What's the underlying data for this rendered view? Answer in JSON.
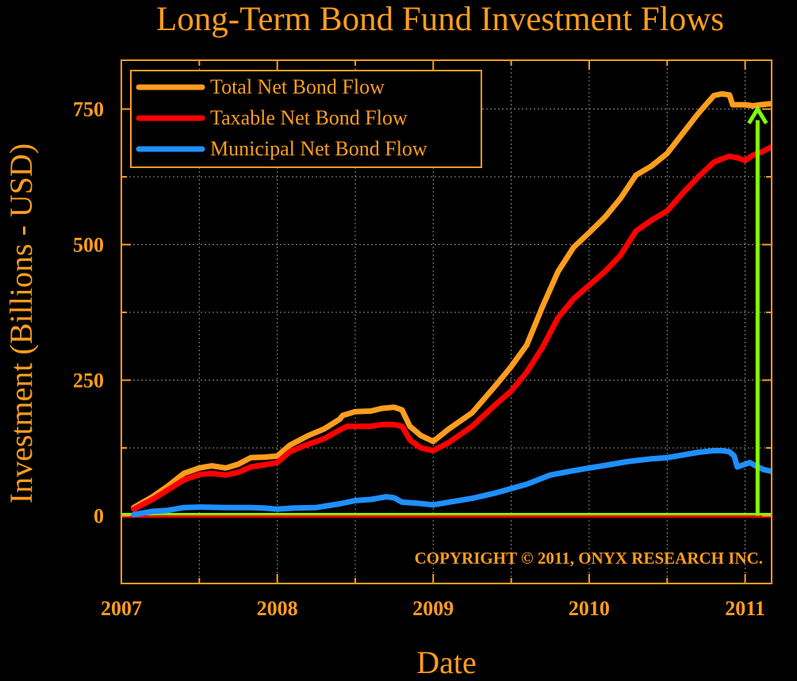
{
  "colors": {
    "background": "#000000",
    "text": "#FF9D1E",
    "total": "#FF9D1E",
    "taxable": "#FF0000",
    "municipal": "#1E90FF",
    "arrow": "#7FFF00",
    "zero_line": "#7FFF00",
    "grid": "#8a8a8a"
  },
  "chart_data": {
    "type": "line",
    "title": "Long-Term Bond Fund Investment Flows",
    "xlabel": "Date",
    "ylabel": "Investment (Billions - USD)",
    "xlim": [
      2007.0,
      2011.17
    ],
    "ylim": [
      -125,
      840
    ],
    "x_ticks": [
      {
        "value": 2007,
        "label": "2007"
      },
      {
        "value": 2008,
        "label": "2008"
      },
      {
        "value": 2009,
        "label": "2009"
      },
      {
        "value": 2010,
        "label": "2010"
      },
      {
        "value": 2011,
        "label": "2011"
      }
    ],
    "y_ticks": [
      {
        "value": 0,
        "label": "0"
      },
      {
        "value": 250,
        "label": "250"
      },
      {
        "value": 500,
        "label": "500"
      },
      {
        "value": 750,
        "label": "750"
      }
    ],
    "grid": true,
    "legend_position": "top-left",
    "copyright": "COPYRIGHT © 2011, ONYX RESEARCH INC.",
    "series": [
      {
        "name": "Total Net Bond Flow",
        "color_key": "total",
        "points": [
          [
            2007.08,
            15
          ],
          [
            2007.2,
            35
          ],
          [
            2007.3,
            55
          ],
          [
            2007.4,
            78
          ],
          [
            2007.5,
            88
          ],
          [
            2007.58,
            92
          ],
          [
            2007.67,
            88
          ],
          [
            2007.75,
            95
          ],
          [
            2007.83,
            107
          ],
          [
            2007.92,
            108
          ],
          [
            2008.0,
            110
          ],
          [
            2008.08,
            130
          ],
          [
            2008.2,
            148
          ],
          [
            2008.3,
            160
          ],
          [
            2008.4,
            178
          ],
          [
            2008.42,
            185
          ],
          [
            2008.5,
            192
          ],
          [
            2008.6,
            193
          ],
          [
            2008.67,
            198
          ],
          [
            2008.75,
            200
          ],
          [
            2008.8,
            195
          ],
          [
            2008.85,
            165
          ],
          [
            2008.92,
            148
          ],
          [
            2009.0,
            137
          ],
          [
            2009.1,
            160
          ],
          [
            2009.25,
            190
          ],
          [
            2009.4,
            240
          ],
          [
            2009.5,
            275
          ],
          [
            2009.6,
            315
          ],
          [
            2009.7,
            385
          ],
          [
            2009.8,
            450
          ],
          [
            2009.9,
            495
          ],
          [
            2010.0,
            522
          ],
          [
            2010.1,
            550
          ],
          [
            2010.2,
            585
          ],
          [
            2010.3,
            628
          ],
          [
            2010.4,
            645
          ],
          [
            2010.5,
            668
          ],
          [
            2010.6,
            705
          ],
          [
            2010.7,
            742
          ],
          [
            2010.8,
            775
          ],
          [
            2010.85,
            778
          ],
          [
            2010.9,
            776
          ],
          [
            2010.92,
            758
          ],
          [
            2011.0,
            758
          ],
          [
            2011.05,
            756
          ],
          [
            2011.1,
            758
          ],
          [
            2011.17,
            760
          ]
        ]
      },
      {
        "name": "Taxable Net Bond Flow",
        "color_key": "taxable",
        "points": [
          [
            2007.08,
            12
          ],
          [
            2007.2,
            30
          ],
          [
            2007.3,
            48
          ],
          [
            2007.4,
            66
          ],
          [
            2007.5,
            76
          ],
          [
            2007.58,
            78
          ],
          [
            2007.67,
            75
          ],
          [
            2007.75,
            80
          ],
          [
            2007.83,
            90
          ],
          [
            2007.92,
            94
          ],
          [
            2008.0,
            98
          ],
          [
            2008.08,
            118
          ],
          [
            2008.2,
            132
          ],
          [
            2008.3,
            142
          ],
          [
            2008.4,
            158
          ],
          [
            2008.45,
            165
          ],
          [
            2008.5,
            165
          ],
          [
            2008.6,
            165
          ],
          [
            2008.67,
            168
          ],
          [
            2008.75,
            168
          ],
          [
            2008.8,
            165
          ],
          [
            2008.85,
            140
          ],
          [
            2008.92,
            125
          ],
          [
            2009.0,
            120
          ],
          [
            2009.1,
            135
          ],
          [
            2009.25,
            165
          ],
          [
            2009.4,
            205
          ],
          [
            2009.5,
            230
          ],
          [
            2009.6,
            265
          ],
          [
            2009.7,
            310
          ],
          [
            2009.8,
            365
          ],
          [
            2009.9,
            400
          ],
          [
            2010.0,
            425
          ],
          [
            2010.1,
            450
          ],
          [
            2010.2,
            480
          ],
          [
            2010.3,
            525
          ],
          [
            2010.4,
            545
          ],
          [
            2010.5,
            562
          ],
          [
            2010.6,
            595
          ],
          [
            2010.7,
            625
          ],
          [
            2010.8,
            652
          ],
          [
            2010.85,
            658
          ],
          [
            2010.9,
            663
          ],
          [
            2010.95,
            660
          ],
          [
            2011.0,
            655
          ],
          [
            2011.05,
            665
          ],
          [
            2011.1,
            670
          ],
          [
            2011.17,
            680
          ]
        ]
      },
      {
        "name": "Municipal Net Bond Flow",
        "color_key": "municipal",
        "points": [
          [
            2007.08,
            2
          ],
          [
            2007.2,
            8
          ],
          [
            2007.3,
            10
          ],
          [
            2007.4,
            15
          ],
          [
            2007.5,
            16
          ],
          [
            2007.67,
            15
          ],
          [
            2007.83,
            15
          ],
          [
            2007.92,
            14
          ],
          [
            2008.0,
            12
          ],
          [
            2008.1,
            14
          ],
          [
            2008.25,
            15
          ],
          [
            2008.4,
            22
          ],
          [
            2008.5,
            28
          ],
          [
            2008.6,
            30
          ],
          [
            2008.7,
            35
          ],
          [
            2008.75,
            33
          ],
          [
            2008.8,
            25
          ],
          [
            2008.9,
            23
          ],
          [
            2009.0,
            20
          ],
          [
            2009.1,
            25
          ],
          [
            2009.25,
            32
          ],
          [
            2009.4,
            42
          ],
          [
            2009.5,
            50
          ],
          [
            2009.6,
            58
          ],
          [
            2009.75,
            75
          ],
          [
            2009.9,
            83
          ],
          [
            2010.0,
            88
          ],
          [
            2010.15,
            95
          ],
          [
            2010.25,
            100
          ],
          [
            2010.4,
            105
          ],
          [
            2010.5,
            107
          ],
          [
            2010.6,
            112
          ],
          [
            2010.7,
            117
          ],
          [
            2010.8,
            120
          ],
          [
            2010.85,
            120
          ],
          [
            2010.9,
            118
          ],
          [
            2010.93,
            110
          ],
          [
            2010.95,
            90
          ],
          [
            2011.0,
            95
          ],
          [
            2011.03,
            98
          ],
          [
            2011.08,
            90
          ],
          [
            2011.12,
            85
          ],
          [
            2011.17,
            82
          ]
        ]
      }
    ],
    "zero_line": {
      "value": 0,
      "color_key": "zero_line"
    },
    "arrow": {
      "x": 2011.08,
      "from": 0,
      "to": 750,
      "color_key": "arrow"
    }
  }
}
